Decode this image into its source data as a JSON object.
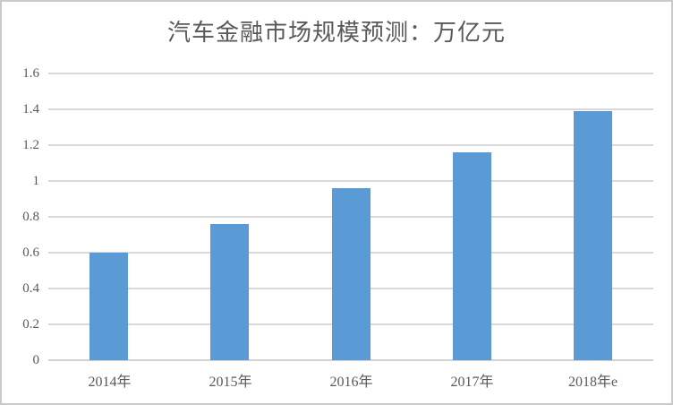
{
  "chart_data": {
    "type": "bar",
    "title": "汽车金融市场规模预测：万亿元",
    "categories": [
      "2014年",
      "2015年",
      "2016年",
      "2017年",
      "2018年e"
    ],
    "values": [
      0.6,
      0.76,
      0.96,
      1.16,
      1.39
    ],
    "xlabel": "",
    "ylabel": "",
    "ylim": [
      0,
      1.6
    ],
    "ytick_step": 0.2,
    "ytick_labels": [
      "0",
      "0.2",
      "0.4",
      "0.6",
      "0.8",
      "1",
      "1.2",
      "1.4",
      "1.6"
    ],
    "grid": "horizontal",
    "legend": "none",
    "colors": {
      "bar": "#5b9bd5",
      "gridline": "#d9d9d9",
      "axis_line": "#d3d3d3",
      "text": "#595959",
      "frame_border": "#c9c9c9",
      "background": "#ffffff"
    }
  }
}
